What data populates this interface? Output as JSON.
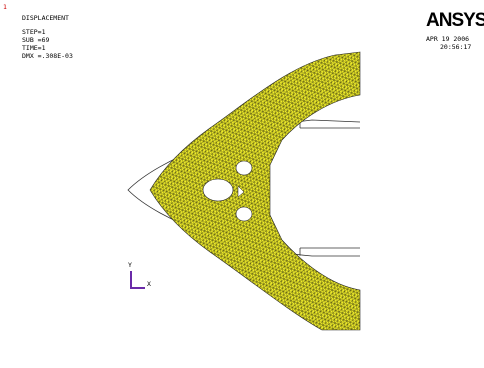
{
  "window_number": "1",
  "result": {
    "title": "DISPLACEMENT",
    "lines": [
      "STEP=1",
      "SUB =69",
      "TIME=1",
      "DMX =.308E-03"
    ]
  },
  "logo": "ANSYS",
  "date": "APR 19 2006",
  "time": "20:56:17",
  "triad": {
    "y_label": "Y",
    "x_label": "X"
  }
}
